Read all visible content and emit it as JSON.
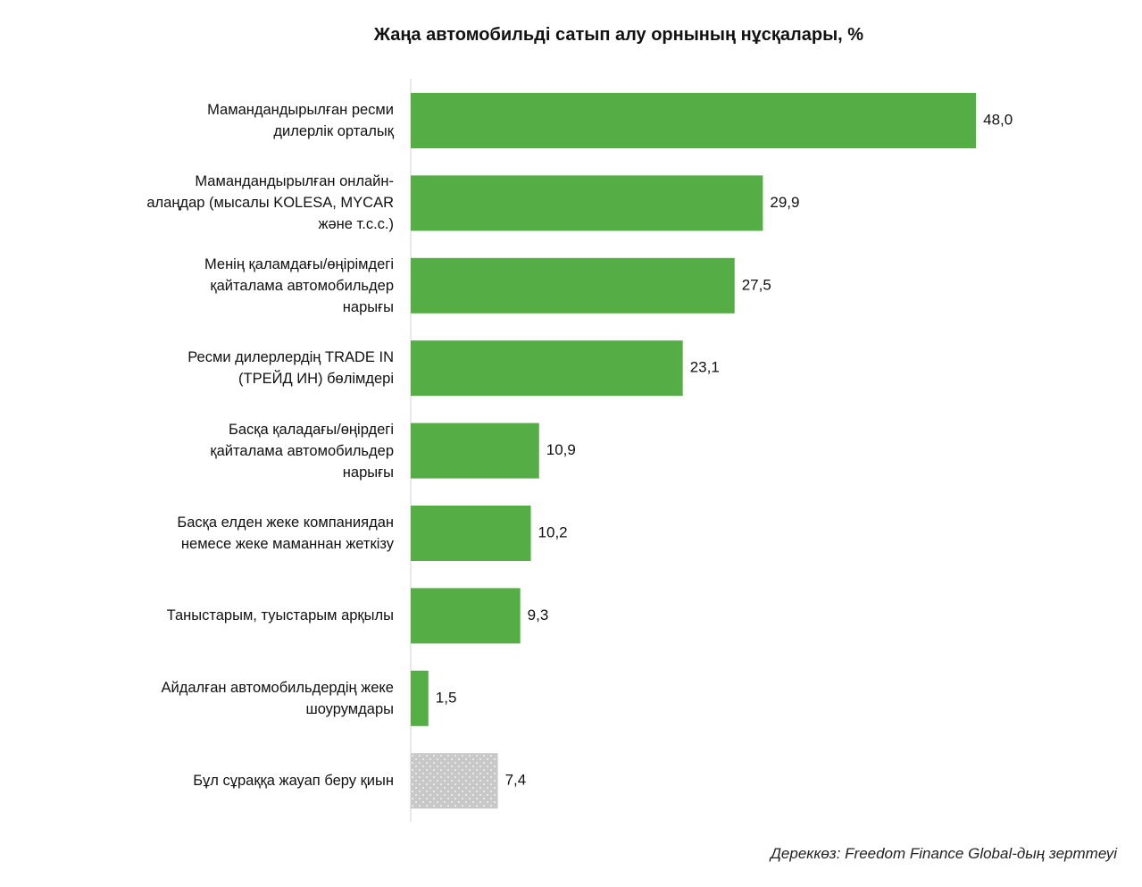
{
  "chart_data": {
    "type": "hbar",
    "title": "Жаңа автомобильді сатып алу орнының нұсқалары, %",
    "categories": [
      "Мамандандырылған ресми\nдилерлік орталық",
      "Мамандандырылған онлайн-\nалаңдар (мысалы KOLESA, MYCAR\nжәне т.с.с.)",
      "Менің қаламдағы/өңірімдегі\nқайталама автомобильдер\nнарығы",
      "Ресми дилерлердің TRADE IN\n(ТРЕЙД ИН) бөлімдері",
      "Басқа қаладағы/өңірдегі\nқайталама автомобильдер\nнарығы",
      "Басқа елден жеке компаниядан\nнемесе жеке маманнан жеткізу",
      "Таныстарым, туыстарым арқылы",
      "Айдалған автомобильдердің жеке\nшоурумдары",
      "Бұл сұраққа жауап беру қиын"
    ],
    "values": [
      48.0,
      29.9,
      27.5,
      23.1,
      10.9,
      10.2,
      9.3,
      1.5,
      7.4
    ],
    "value_labels": [
      "48,0",
      "29,9",
      "27,5",
      "23,1",
      "10,9",
      "10,2",
      "9,3",
      "1,5",
      "7,4"
    ],
    "colors": [
      "#55ae45",
      "#55ae45",
      "#55ae45",
      "#55ae45",
      "#55ae45",
      "#55ae45",
      "#55ae45",
      "#55ae45",
      "#c8c8c8"
    ],
    "styles": [
      "solid",
      "solid",
      "solid",
      "solid",
      "solid",
      "solid",
      "solid",
      "solid",
      "dotted"
    ],
    "source": "Дереккөз: Freedom Finance Global-дың зерттеуі"
  }
}
